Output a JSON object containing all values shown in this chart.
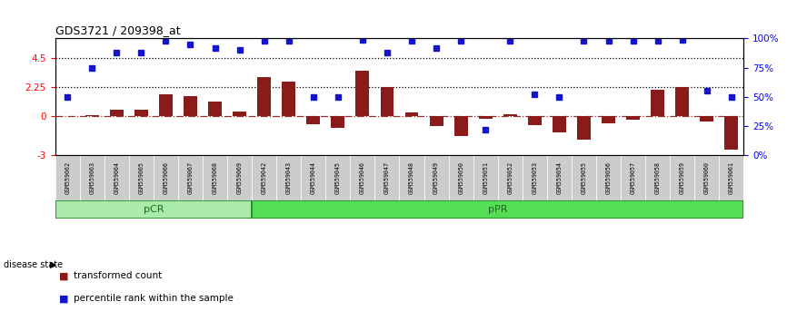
{
  "title": "GDS3721 / 209398_at",
  "samples": [
    "GSM559062",
    "GSM559063",
    "GSM559064",
    "GSM559065",
    "GSM559066",
    "GSM559067",
    "GSM559068",
    "GSM559069",
    "GSM559042",
    "GSM559043",
    "GSM559044",
    "GSM559045",
    "GSM559046",
    "GSM559047",
    "GSM559048",
    "GSM559049",
    "GSM559050",
    "GSM559051",
    "GSM559052",
    "GSM559053",
    "GSM559054",
    "GSM559055",
    "GSM559056",
    "GSM559057",
    "GSM559058",
    "GSM559059",
    "GSM559060",
    "GSM559061"
  ],
  "bar_values": [
    0.05,
    0.12,
    0.55,
    0.5,
    1.7,
    1.55,
    1.15,
    0.35,
    3.05,
    2.65,
    -0.6,
    -0.85,
    3.55,
    2.25,
    0.3,
    -0.75,
    -1.5,
    -0.2,
    0.15,
    -0.65,
    -1.25,
    -1.8,
    -0.5,
    -0.25,
    2.05,
    2.25,
    -0.4,
    -2.55
  ],
  "blue_values_pct": [
    50,
    75,
    88,
    88,
    98,
    95,
    92,
    90,
    98,
    98,
    50,
    50,
    99,
    88,
    98,
    92,
    98,
    22,
    98,
    52,
    50,
    98,
    98,
    98,
    98,
    99,
    55,
    50
  ],
  "bar_color": "#8B1A1A",
  "blue_color": "#1414CC",
  "ylim_left": [
    -3,
    6
  ],
  "ylim_right": [
    0,
    100
  ],
  "left_yticks": [
    -3,
    0,
    2.25,
    4.5
  ],
  "left_yticklabels": [
    "-3",
    "0",
    "2.25",
    "4.5"
  ],
  "right_yticks": [
    0,
    25,
    50,
    75,
    100
  ],
  "right_yticklabels": [
    "0%",
    "25%",
    "50%",
    "75%",
    "100%"
  ],
  "hlines_dotted": [
    2.25,
    4.5
  ],
  "hline_dashdot": 0,
  "pCR_count": 8,
  "pCR_label": "pCR",
  "pPR_label": "pPR",
  "disease_state_label": "disease state",
  "legend_bar_label": "transformed count",
  "legend_blue_label": "percentile rank within the sample",
  "bg_color": "#FFFFFF",
  "sample_bg_color": "#CCCCCC",
  "pCR_color": "#AAEAAA",
  "pPR_color": "#55DD55",
  "border_color": "#228B22"
}
